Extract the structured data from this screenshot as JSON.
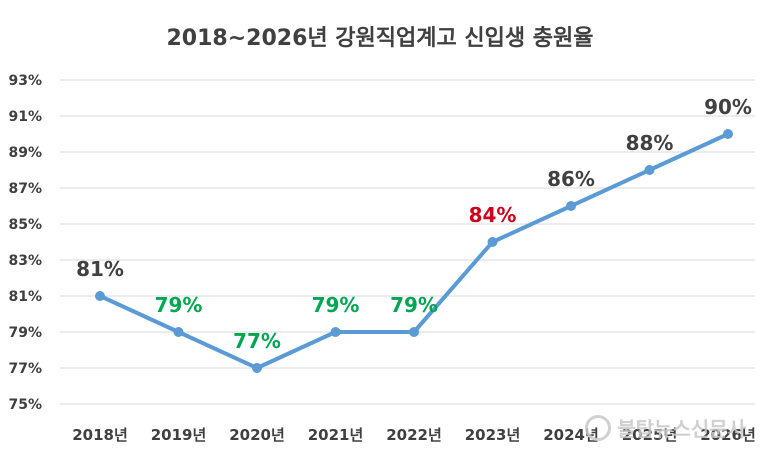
{
  "chart_data": {
    "type": "line",
    "title": "2018~2026년 강원직업계고 신입생 충원율",
    "categories": [
      "2018년",
      "2019년",
      "2020년",
      "2021년",
      "2022년",
      "2023년",
      "2024년",
      "2025년",
      "2026년"
    ],
    "series": [
      {
        "values": [
          81,
          79,
          77,
          79,
          79,
          84,
          86,
          88,
          90
        ],
        "color": "#5b9bd5"
      }
    ],
    "data_labels": [
      "81%",
      "79%",
      "77%",
      "79%",
      "79%",
      "84%",
      "86%",
      "88%",
      "90%"
    ],
    "data_label_colors": [
      "#404040",
      "#00a651",
      "#00a651",
      "#00a651",
      "#00a651",
      "#d0021b",
      "#404040",
      "#404040",
      "#404040"
    ],
    "y_ticks": [
      75,
      77,
      79,
      81,
      83,
      85,
      87,
      89,
      91,
      93
    ],
    "y_tick_labels": [
      "75%",
      "77%",
      "79%",
      "81%",
      "83%",
      "85%",
      "87%",
      "89%",
      "91%",
      "93%"
    ],
    "ylim": [
      75,
      93
    ],
    "grid": true,
    "legend": "none",
    "gridline_color": "#d9d9d9"
  },
  "watermark": {
    "text": "불탑뉴스신문사",
    "icon": "watermark-logo-icon"
  }
}
